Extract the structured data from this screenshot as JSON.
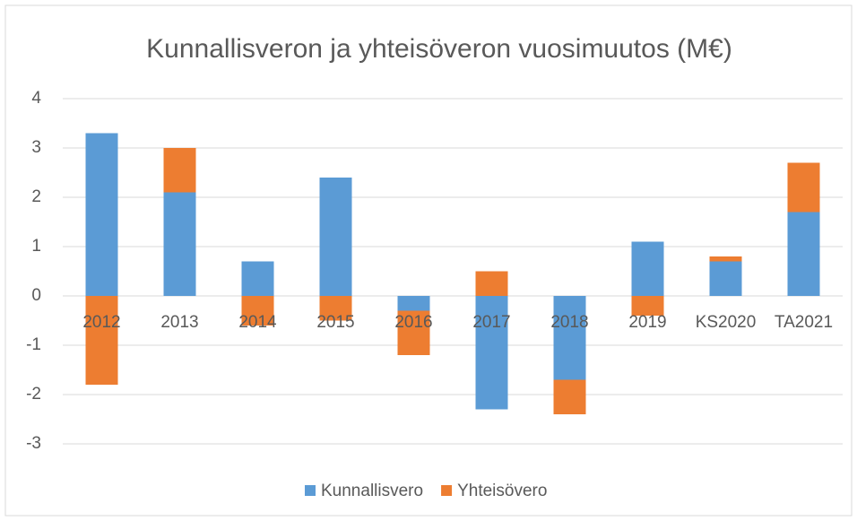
{
  "chart_data": {
    "type": "stacked_bar",
    "title": "Kunnallisveron ja yhteisöveron vuosimuutos (M€)",
    "categories": [
      "2012",
      "2013",
      "2014",
      "2015",
      "2016",
      "2017",
      "2018",
      "2019",
      "KS2020",
      "TA2021"
    ],
    "series": [
      {
        "name": "Kunnallisvero",
        "color": "#5b9bd5",
        "values": [
          3.3,
          2.1,
          0.7,
          2.4,
          -0.3,
          -2.3,
          -1.7,
          1.1,
          0.7,
          1.7
        ]
      },
      {
        "name": "Yhteisövero",
        "color": "#ed7d31",
        "values": [
          -1.8,
          0.9,
          -0.6,
          -0.5,
          -0.9,
          0.5,
          -0.7,
          -0.4,
          0.1,
          1.0
        ]
      }
    ],
    "ylim": [
      -3,
      4
    ],
    "yticks": [
      -3,
      -2,
      -1,
      0,
      1,
      2,
      3,
      4
    ],
    "grid": true,
    "legend": "bottom"
  }
}
